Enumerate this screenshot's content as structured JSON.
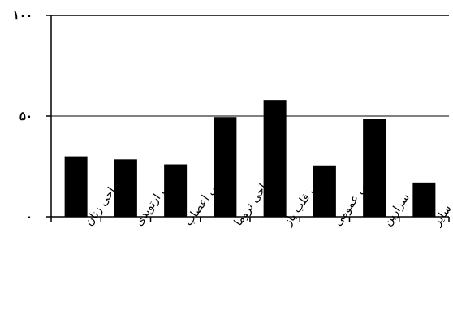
{
  "chart_data": {
    "type": "bar",
    "categories": [
      "جراحی زنان",
      "جراحی ارتوپدی",
      "جراحی اعصاب",
      "جراحی تروما",
      "جراحی قلب باز",
      "جراحی عمومی",
      "سزارین",
      "سایر"
    ],
    "values": [
      30,
      28.5,
      26,
      49.5,
      58,
      25.5,
      48.5,
      17
    ],
    "ylim": [
      0,
      100
    ],
    "y_ticks": [
      0,
      50,
      100
    ],
    "y_tick_labels": [
      "۰",
      "۵۰",
      "۱۰۰"
    ],
    "gridlines": [
      50
    ],
    "grid": true,
    "legend": "none",
    "colors": {
      "bars": "#000000",
      "axis": "#000000",
      "background": "#ffffff"
    }
  }
}
